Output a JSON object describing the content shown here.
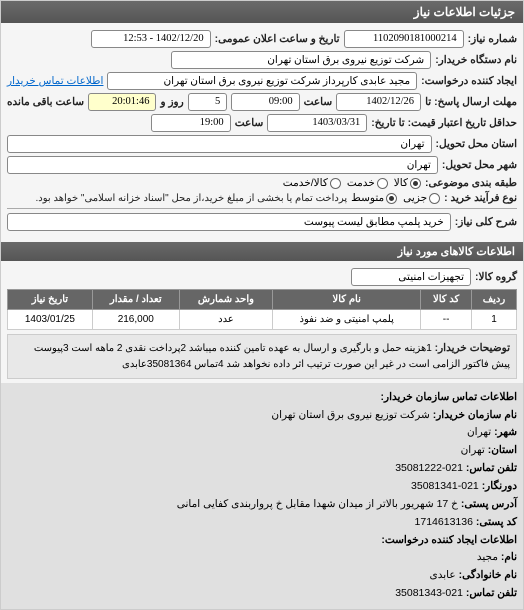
{
  "title_bar": "جزئیات اطلاعات نیاز",
  "fields": {
    "request_no_label": "شماره نیاز:",
    "request_no": "1102090181000214",
    "announce_label": "تاریخ و ساعت اعلان عمومی:",
    "announce_value": "1402/12/20 - 12:53",
    "buyer_label": "نام دستگاه خریدار:",
    "buyer_value": "شرکت توزیع نیروی برق استان تهران",
    "creator_label": "ایجاد کننده درخواست:",
    "creator_value": "مجید عابدی کارپرداز شرکت توزیع نیروی برق استان تهران",
    "contact_link": "اطلاعات تماس خریدار",
    "deadline_label": "مهلت ارسال پاسخ: تا",
    "deadline_date": "1402/12/26",
    "time_label": "ساعت",
    "deadline_time": "09:00",
    "remain_days_label": "روز و",
    "remain_days": "5",
    "remain_time": "20:01:46",
    "remain_suffix": "ساعت باقی مانده",
    "validity_label": "حداقل تاریخ اعتبار قیمت: تا تاریخ:",
    "validity_date": "1403/03/31",
    "validity_time": "19:00",
    "delivery_state_label": "استان محل تحویل:",
    "delivery_state": "تهران",
    "delivery_city_label": "شهر محل تحویل:",
    "delivery_city": "تهران",
    "budget_label": "طبقه بندی موضوعی:",
    "budget_options": {
      "goods": "کالا",
      "service": "خدمت",
      "both": "کالا/خدمت"
    },
    "budget_selected": "goods",
    "process_label": "نوع فرآیند خرید :",
    "process_options": {
      "small": "متوسط",
      "partial": "جزیی"
    },
    "process_selected": "small",
    "process_note": "پرداخت تمام یا بخشی از مبلغ خرید،از محل \"اسناد خزانه اسلامی\" خواهد بود.",
    "need_title_label": "شرح کلی نیاز:",
    "need_title": "خرید پلمپ مطابق لیست پیوست"
  },
  "goods_header": "اطلاعات کالاهای مورد نیاز",
  "goods_group_label": "گروه کالا:",
  "goods_group": "تجهیزات امنیتی",
  "table": {
    "columns": [
      "ردیف",
      "کد کالا",
      "نام کالا",
      "واحد شمارش",
      "تعداد / مقدار",
      "تاریخ نیاز"
    ],
    "rows": [
      [
        "1",
        "--",
        "پلمپ امنیتی و ضد نفوذ",
        "عدد",
        "216,000",
        "1403/01/25"
      ]
    ]
  },
  "desc": {
    "label": "توضیحات خریدار:",
    "text": "1هزینه حمل و بارگیری و ارسال به عهده تامین کننده میباشد 2پرداخت نقدی 2 ماهه است 3پیوست پیش فاکتور الزامی است در غیر این صورت ترتیب اثر داده نخواهد شد 4تماس 35081364عابدی"
  },
  "contact": {
    "header": "اطلاعات تماس سازمان خریدار:",
    "org_label": "نام سازمان خریدار:",
    "org": "شرکت توزیع نیروی برق استان تهران",
    "city_label": "شهر:",
    "city": "تهران",
    "state_label": "استان:",
    "state": "تهران",
    "phone_label": "تلفن تماس:",
    "phone": "021-35081222",
    "fax_label": "دورنگار:",
    "fax": "021-35081341",
    "addr_label": "آدرس پستی:",
    "addr": "خ 17 شهریور بالاتر از میدان شهدا مقابل خ پرواربندی کفایی امانی",
    "post_label": "کد پستی:",
    "post": "1714613136",
    "creator_header": "اطلاعات ایجاد کننده درخواست:",
    "name_label": "نام:",
    "name": "مجید",
    "family_label": "نام خانوادگی:",
    "family": "عابدی",
    "phone2_label": "تلفن تماس:",
    "phone2": "021-35081343"
  }
}
